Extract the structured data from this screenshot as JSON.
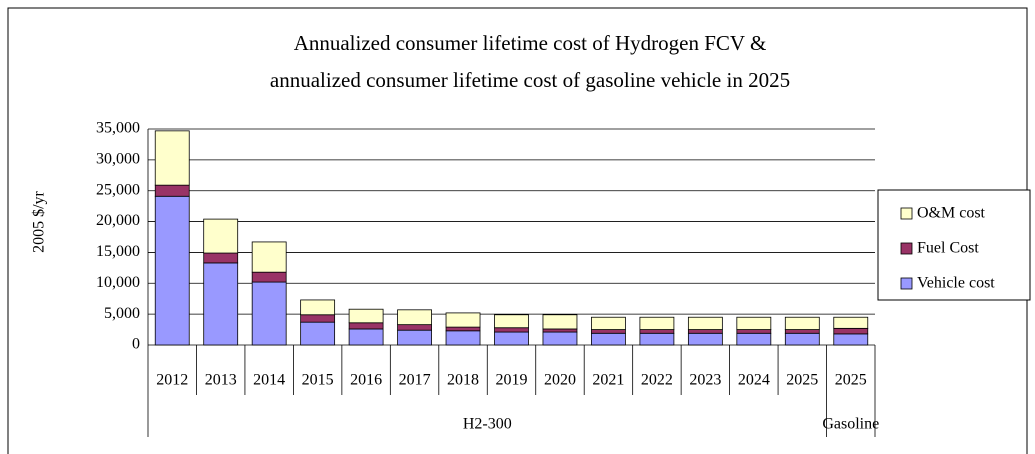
{
  "chart_data": {
    "type": "stacked_bar",
    "title_lines": [
      "Annualized consumer lifetime cost of Hydrogen FCV &",
      "annualized consumer lifetime cost of gasoline vehicle in 2025"
    ],
    "y_label": "2005 $/yr",
    "categories": [
      "2012",
      "2013",
      "2014",
      "2015",
      "2016",
      "2017",
      "2018",
      "2019",
      "2020",
      "2021",
      "2022",
      "2023",
      "2024",
      "2025",
      "2025"
    ],
    "groups": [
      {
        "label": "H2-300",
        "count": 14
      },
      {
        "label": "Gasoline",
        "count": 1
      }
    ],
    "series": [
      {
        "name": "Vehicle cost",
        "color": "#9999ff",
        "values": [
          24100,
          13300,
          10200,
          3700,
          2600,
          2400,
          2300,
          2100,
          2100,
          1900,
          1900,
          1900,
          1900,
          1900,
          1800
        ]
      },
      {
        "name": "Fuel Cost",
        "color": "#993366",
        "values": [
          1800,
          1600,
          1600,
          1200,
          1000,
          900,
          600,
          700,
          500,
          600,
          600,
          600,
          600,
          600,
          900
        ]
      },
      {
        "name": "O&M cost",
        "color": "#ffffcc",
        "values": [
          8800,
          5500,
          4900,
          2400,
          2200,
          2400,
          2300,
          2100,
          2300,
          2000,
          2000,
          2000,
          2000,
          2000,
          1800
        ]
      }
    ],
    "ylim": [
      0,
      35000
    ],
    "yticks": [
      0,
      {
        "value": 5000,
        "label": "5,000"
      },
      {
        "value": 10000,
        "label": "10,000"
      },
      {
        "value": 15000,
        "label": "15,000"
      },
      {
        "value": 20000,
        "label": "20,000"
      },
      {
        "value": 25000,
        "label": "25,000"
      },
      {
        "value": 30000,
        "label": "30,000"
      },
      {
        "value": 35000,
        "label": "35,000"
      }
    ],
    "grid": true,
    "legend": "right"
  }
}
